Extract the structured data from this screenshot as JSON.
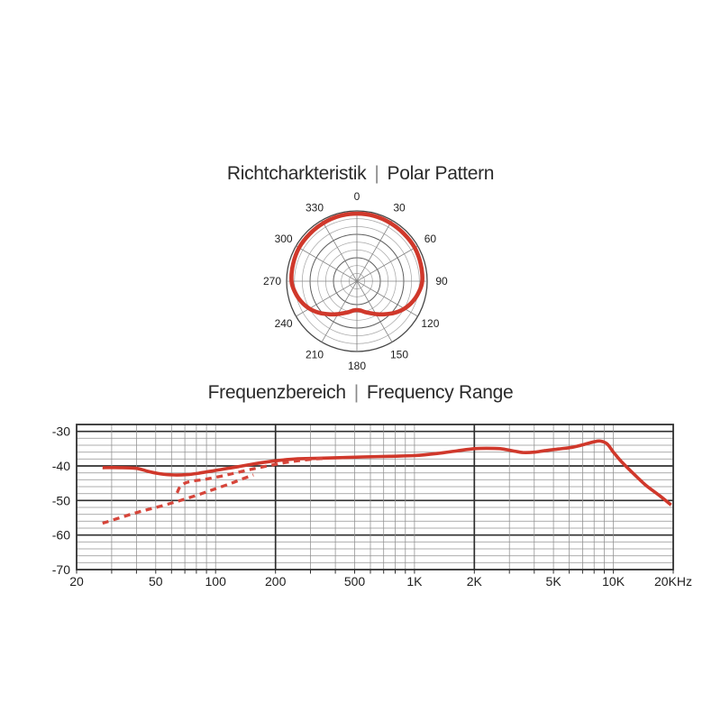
{
  "page": {
    "background": "#ffffff"
  },
  "polar_section": {
    "title_de": "Richtcharkteristik",
    "separator": "|",
    "title_en": "Polar Pattern"
  },
  "freq_section": {
    "title_de": "Frequenzbereich",
    "separator": "|",
    "title_en": "Frequency Range"
  },
  "chart_data": [
    {
      "id": "polar_pattern",
      "type": "line",
      "subtype": "polar",
      "title": "Richtcharkteristik | Polar Pattern",
      "angle_labels": [
        "0",
        "30",
        "60",
        "90",
        "120",
        "150",
        "180",
        "210",
        "240",
        "270",
        "300",
        "330"
      ],
      "rings": 9,
      "dark_rings": [
        3,
        6
      ],
      "spoke_step_deg": 30,
      "curve_color": "#d0382b",
      "grid_color": "#a8a8a8",
      "grid_dark_color": "#5f5f5f",
      "outer_ring_color": "#474747",
      "pattern_points": [
        [
          0,
          0.96
        ],
        [
          15,
          0.96
        ],
        [
          30,
          0.955
        ],
        [
          45,
          0.95
        ],
        [
          60,
          0.95
        ],
        [
          75,
          0.94
        ],
        [
          90,
          0.93
        ],
        [
          100,
          0.895
        ],
        [
          110,
          0.845
        ],
        [
          120,
          0.78
        ],
        [
          130,
          0.7
        ],
        [
          140,
          0.615
        ],
        [
          150,
          0.54
        ],
        [
          158,
          0.49
        ],
        [
          166,
          0.45
        ],
        [
          173,
          0.42
        ],
        [
          180,
          0.41
        ],
        [
          187,
          0.42
        ],
        [
          194,
          0.45
        ],
        [
          202,
          0.49
        ],
        [
          210,
          0.54
        ],
        [
          220,
          0.615
        ],
        [
          230,
          0.7
        ],
        [
          240,
          0.78
        ],
        [
          250,
          0.845
        ],
        [
          260,
          0.895
        ],
        [
          270,
          0.93
        ],
        [
          285,
          0.94
        ],
        [
          300,
          0.95
        ],
        [
          315,
          0.95
        ],
        [
          330,
          0.955
        ],
        [
          345,
          0.96
        ]
      ]
    },
    {
      "id": "frequency_response",
      "type": "line",
      "subtype": "semilog-x",
      "title": "Frequenzbereich | Frequency Range",
      "x_log_range": [
        20,
        20000
      ],
      "ylim_top": -28,
      "ylim_bottom": -70,
      "y_major_ticks": [
        -30,
        -40,
        -50,
        -60,
        -70
      ],
      "y_minor_step": 2,
      "x_dark_lines": [
        200,
        2000
      ],
      "x_tick_labels": [
        {
          "f": 20,
          "label": "20"
        },
        {
          "f": 50,
          "label": "50"
        },
        {
          "f": 100,
          "label": "100"
        },
        {
          "f": 200,
          "label": "200"
        },
        {
          "f": 500,
          "label": "500"
        },
        {
          "f": 1000,
          "label": "1K"
        },
        {
          "f": 2000,
          "label": "2K"
        },
        {
          "f": 5000,
          "label": "5K"
        },
        {
          "f": 10000,
          "label": "10K"
        },
        {
          "f": 20000,
          "label": "20KHz"
        }
      ],
      "grid_minor_color": "#909090",
      "grid_major_color": "#2f2f2f",
      "series": [
        {
          "name": "response-solid",
          "style": "solid",
          "color": "#d0382b",
          "points": [
            [
              27,
              -40.5
            ],
            [
              33,
              -40.5
            ],
            [
              40,
              -40.7
            ],
            [
              46,
              -41.6
            ],
            [
              53,
              -42.3
            ],
            [
              62,
              -42.6
            ],
            [
              72,
              -42.5
            ],
            [
              82,
              -42.1
            ],
            [
              95,
              -41.5
            ],
            [
              110,
              -40.9
            ],
            [
              130,
              -40.2
            ],
            [
              160,
              -39.3
            ],
            [
              200,
              -38.5
            ],
            [
              250,
              -38.0
            ],
            [
              320,
              -37.8
            ],
            [
              420,
              -37.6
            ],
            [
              550,
              -37.4
            ],
            [
              750,
              -37.2
            ],
            [
              1000,
              -37.0
            ],
            [
              1300,
              -36.4
            ],
            [
              1650,
              -35.6
            ],
            [
              2000,
              -35.0
            ],
            [
              2300,
              -34.9
            ],
            [
              2700,
              -35.0
            ],
            [
              3100,
              -35.6
            ],
            [
              3500,
              -36.1
            ],
            [
              4000,
              -36.0
            ],
            [
              4600,
              -35.5
            ],
            [
              5300,
              -35.1
            ],
            [
              6200,
              -34.6
            ],
            [
              7100,
              -33.8
            ],
            [
              8000,
              -33.0
            ],
            [
              8600,
              -32.8
            ],
            [
              9300,
              -33.6
            ],
            [
              10000,
              -36.0
            ],
            [
              11000,
              -38.8
            ],
            [
              12500,
              -42.0
            ],
            [
              14500,
              -45.5
            ],
            [
              17000,
              -48.5
            ],
            [
              19500,
              -51.3
            ]
          ]
        },
        {
          "name": "response-dashed-lower",
          "style": "dashed",
          "color": "#d6453a",
          "points": [
            [
              27,
              -56.6
            ],
            [
              33,
              -55.0
            ],
            [
              40,
              -53.5
            ],
            [
              48,
              -52.3
            ],
            [
              58,
              -51.0
            ],
            [
              70,
              -49.6
            ],
            [
              85,
              -48.0
            ],
            [
              100,
              -46.6
            ],
            [
              120,
              -45.0
            ],
            [
              140,
              -43.5
            ],
            [
              155,
              -42.6
            ]
          ]
        },
        {
          "name": "response-dashed-upper",
          "style": "dashed",
          "color": "#d6453a",
          "points": [
            [
              64,
              -47.8
            ],
            [
              66,
              -46.2
            ],
            [
              70,
              -45.0
            ],
            [
              76,
              -44.4
            ],
            [
              86,
              -44.0
            ],
            [
              100,
              -43.3
            ],
            [
              120,
              -42.3
            ],
            [
              145,
              -41.2
            ],
            [
              175,
              -40.2
            ],
            [
              215,
              -39.2
            ],
            [
              260,
              -38.5
            ],
            [
              310,
              -38.0
            ],
            [
              350,
              -37.8
            ]
          ]
        }
      ]
    }
  ]
}
